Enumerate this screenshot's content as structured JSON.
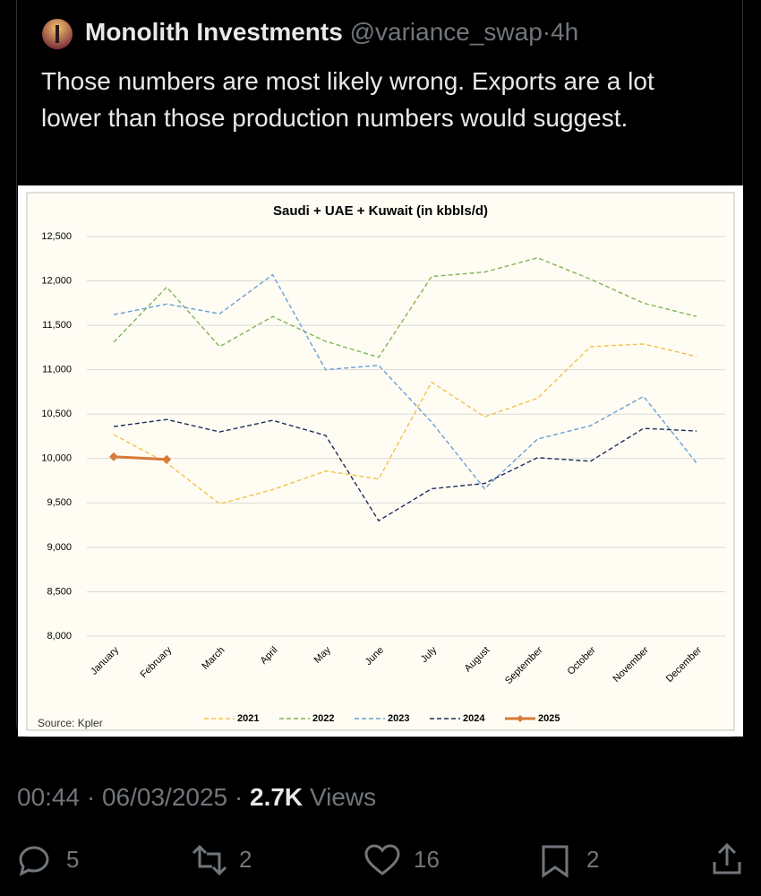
{
  "tweet": {
    "name": "Monolith Investments",
    "handle": "@variance_swap",
    "separator": "·",
    "age": "4h",
    "text": "Those numbers are most likely wrong. Exports are a lot lower than those production numbers would suggest.",
    "time": "00:44",
    "date": "06/03/2025",
    "views": "2.7K",
    "views_label": "Views",
    "replies": "5",
    "reposts": "2",
    "likes": "16",
    "bookmarks": "2"
  },
  "chart_data": {
    "type": "line",
    "title": "Saudi + UAE + Kuwait (in kbbls/d)",
    "source": "Source: Kpler",
    "categories": [
      "January",
      "February",
      "March",
      "April",
      "May",
      "June",
      "July",
      "August",
      "September",
      "October",
      "November",
      "December"
    ],
    "ylim": [
      8000,
      12500
    ],
    "yticks": [
      {
        "value": 8000,
        "label": "8,000"
      },
      {
        "value": 8500,
        "label": "8,500"
      },
      {
        "value": 9000,
        "label": "9,000"
      },
      {
        "value": 9500,
        "label": "9,500"
      },
      {
        "value": 10000,
        "label": "10,000"
      },
      {
        "value": 10500,
        "label": "10,500"
      },
      {
        "value": 11000,
        "label": "11,000"
      },
      {
        "value": 11500,
        "label": "11,500"
      },
      {
        "value": 12000,
        "label": "12,000"
      },
      {
        "value": 12500,
        "label": "12,500"
      }
    ],
    "grid": true,
    "legend": "bottom",
    "series": [
      {
        "name": "2021",
        "color": "#f2c04c",
        "dashed": true,
        "values": [
          10270,
          9950,
          9490,
          9650,
          9860,
          9770,
          10860,
          10470,
          10680,
          11260,
          11290,
          11150
        ]
      },
      {
        "name": "2022",
        "color": "#84b35a",
        "dashed": true,
        "values": [
          11310,
          11930,
          11260,
          11600,
          11320,
          11140,
          12050,
          12100,
          12260,
          12020,
          11750,
          11600
        ]
      },
      {
        "name": "2023",
        "color": "#6a9ed8",
        "dashed": true,
        "values": [
          11620,
          11740,
          11630,
          12070,
          11000,
          11050,
          10410,
          9660,
          10220,
          10370,
          10700,
          9950
        ]
      },
      {
        "name": "2024",
        "color": "#1f2d5a",
        "dashed": true,
        "values": [
          10360,
          10440,
          10300,
          10430,
          10260,
          9300,
          9660,
          9720,
          10010,
          9970,
          10340,
          10310
        ]
      },
      {
        "name": "2025",
        "color": "#d9793a",
        "dashed": false,
        "markers": true,
        "values": [
          10020,
          9990,
          null,
          null,
          null,
          null,
          null,
          null,
          null,
          null,
          null,
          null
        ]
      }
    ]
  }
}
